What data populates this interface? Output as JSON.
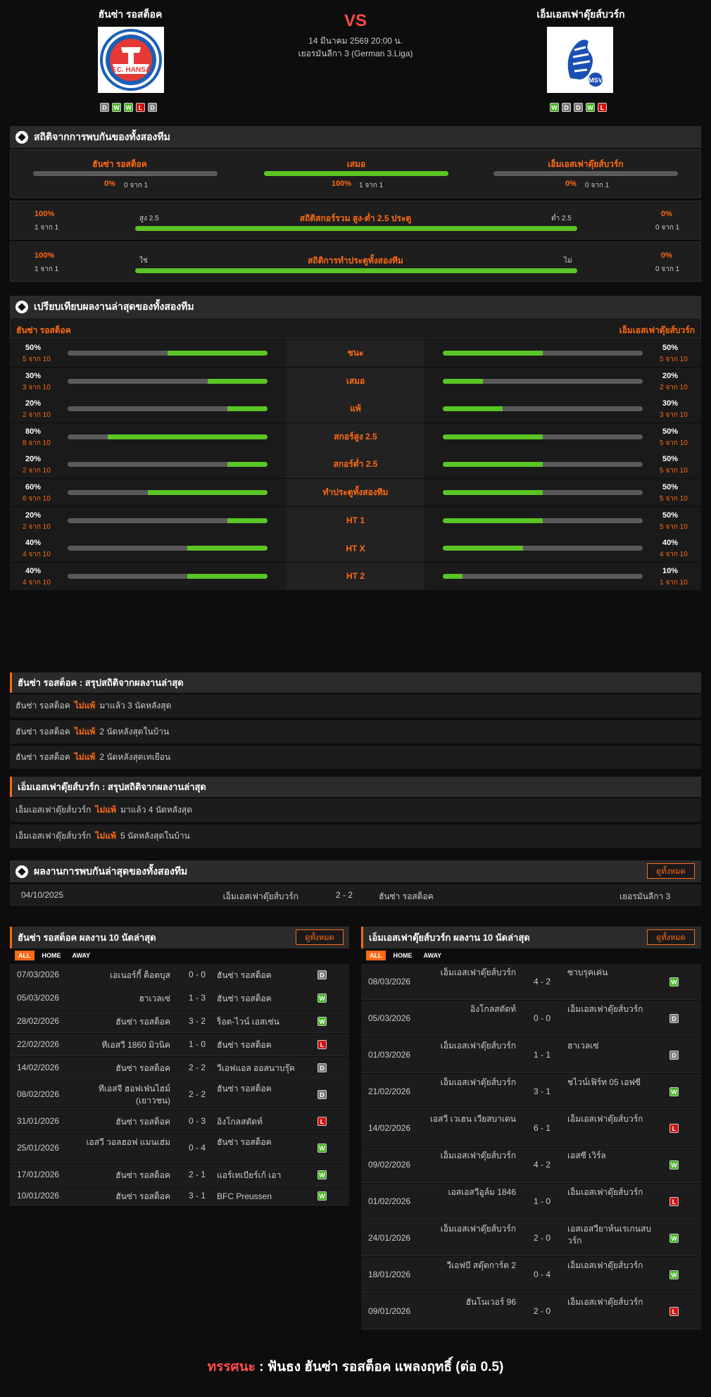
{
  "match": {
    "vs": "VS",
    "date": "14 มีนาคม 2569 20:00 น.",
    "league": "เยอรมันลีกา 3 (German 3.Liga)"
  },
  "home": {
    "name": "ฮันซ่า รอสต็อค",
    "form": [
      "D",
      "W",
      "W",
      "L",
      "D"
    ],
    "logo_text": "F.C. HANSA"
  },
  "away": {
    "name": "เอ็มเอสเฟาดุ๊ยส์บวร์ก",
    "form": [
      "W",
      "D",
      "D",
      "W",
      "L"
    ],
    "logo_text": "MSV"
  },
  "h2h": {
    "title": "สถิติจากการพบกันของทั้งสองทีม",
    "home": {
      "label": "ฮันซ่า รอสต็อค",
      "pct": "0%",
      "sub": "0 จาก 1",
      "value": 0
    },
    "draw": {
      "label": "เสมอ",
      "pct": "100%",
      "sub": "1 จาก 1",
      "value": 1
    },
    "away": {
      "label": "เอ็มเอสเฟาดุ๊ยส์บวร์ก",
      "pct": "0%",
      "sub": "0 จาก 1",
      "value": 0
    },
    "ou": {
      "left_pct": "100%",
      "left_sub": "1 จาก 1",
      "left_lbl": "สูง 2.5",
      "title": "สถิติสกอร์รวม สูง-ต่ำ 2.5 ประตู",
      "right_lbl": "ต่ำ 2.5",
      "right_pct": "0%",
      "right_sub": "0 จาก 1",
      "value": 1
    },
    "btts": {
      "left_pct": "100%",
      "left_sub": "1 จาก 1",
      "left_lbl": "ใช่",
      "title": "สถิติการทำประตูทั้งสองทีม",
      "right_lbl": "ไม่",
      "right_pct": "0%",
      "right_sub": "0 จาก 1",
      "value": 1
    }
  },
  "compare": {
    "title": "เปรียบเทียบผลงานล่าสุดของทั้งสองทีม",
    "home_label": "ฮันซ่า รอสต็อค",
    "away_label": "เอ็มเอสเฟาดุ๊ยส์บวร์ก",
    "rows": [
      {
        "label": "ชนะ",
        "hp": "50%",
        "hs": "5 จาก 10",
        "hv": 0.5,
        "ap": "50%",
        "as": "5 จาก 10",
        "av": 0.5
      },
      {
        "label": "เสมอ",
        "hp": "30%",
        "hs": "3 จาก 10",
        "hv": 0.3,
        "ap": "20%",
        "as": "2 จาก 10",
        "av": 0.2
      },
      {
        "label": "แพ้",
        "hp": "20%",
        "hs": "2 จาก 10",
        "hv": 0.2,
        "ap": "30%",
        "as": "3 จาก 10",
        "av": 0.3
      },
      {
        "label": "สกอร์สูง 2.5",
        "hp": "80%",
        "hs": "8 จาก 10",
        "hv": 0.8,
        "ap": "50%",
        "as": "5 จาก 10",
        "av": 0.5
      },
      {
        "label": "สกอร์ต่ำ 2.5",
        "hp": "20%",
        "hs": "2 จาก 10",
        "hv": 0.2,
        "ap": "50%",
        "as": "5 จาก 10",
        "av": 0.5
      },
      {
        "label": "ทำประตูทั้งสองทีม",
        "hp": "60%",
        "hs": "6 จาก 10",
        "hv": 0.6,
        "ap": "50%",
        "as": "5 จาก 10",
        "av": 0.5
      },
      {
        "label": "HT 1",
        "hp": "20%",
        "hs": "2 จาก 10",
        "hv": 0.2,
        "ap": "50%",
        "as": "5 จาก 10",
        "av": 0.5
      },
      {
        "label": "HT X",
        "hp": "40%",
        "hs": "4 จาก 10",
        "hv": 0.4,
        "ap": "40%",
        "as": "4 จาก 10",
        "av": 0.4
      },
      {
        "label": "HT 2",
        "hp": "40%",
        "hs": "4 จาก 10",
        "hv": 0.4,
        "ap": "10%",
        "as": "1 จาก 10",
        "av": 0.1
      }
    ]
  },
  "summary_home": {
    "title": "ฮันซ่า รอสต็อค : สรุปสถิติจากผลงานล่าสุด",
    "rows": [
      {
        "team": "ฮันซ่า รอสต็อค",
        "key": "ไม่แพ้",
        "text": "มาแล้ว 3 นัดหลังสุด"
      },
      {
        "team": "ฮันซ่า รอสต็อค",
        "key": "ไม่แพ้",
        "text": "2 นัดหลังสุดในบ้าน"
      },
      {
        "team": "ฮันซ่า รอสต็อค",
        "key": "ไม่แพ้",
        "text": "2 นัดหลังสุดเทเยือน"
      }
    ]
  },
  "summary_away": {
    "title": "เอ็มเอสเฟาดุ๊ยส์บวร์ก : สรุปสถิติจากผลงานล่าสุด",
    "rows": [
      {
        "team": "เอ็มเอสเฟาดุ๊ยส์บวร์ก",
        "key": "ไม่แพ้",
        "text": "มาแล้ว 4 นัดหลังสุด"
      },
      {
        "team": "เอ็มเอสเฟาดุ๊ยส์บวร์ก",
        "key": "ไม่แพ้",
        "text": "5 นัดหลังสุดในบ้าน"
      }
    ]
  },
  "recent_h2h": {
    "title": "ผลงานการพบกันล่าสุดของทั้งสองทีม",
    "btn": "ดูทั้งหมด",
    "rows": [
      {
        "date": "04/10/2025",
        "home": "เอ็มเอสเฟาดุ๊ยส์บวร์ก",
        "score": "2 - 2",
        "away": "ฮันซ่า รอสต็อค",
        "league": "เยอรมันลีกา 3"
      }
    ]
  },
  "last10_home": {
    "title": "ฮันซ่า รอสต็อค ผลงาน 10 นัดล่าสุด",
    "btn": "ดูทั้งหมด",
    "tabs": [
      "ALL",
      "HOME",
      "AWAY"
    ],
    "rows": [
      {
        "date": "07/03/2026",
        "home": "เอเนอร์กี้ ค็อตบุส",
        "score": "0 - 0",
        "away": "ฮันซ่า รอสต็อค",
        "res": "D"
      },
      {
        "date": "05/03/2026",
        "home": "ฮาเวลเซ่",
        "score": "1 - 3",
        "away": "ฮันซ่า รอสต็อค",
        "res": "W"
      },
      {
        "date": "28/02/2026",
        "home": "ฮันซ่า รอสต็อค",
        "score": "3 - 2",
        "away": "ร็อต-ไวน์ เอสเซ่น",
        "res": "W"
      },
      {
        "date": "22/02/2026",
        "home": "ทีเอสวี 1860 มิวนิค",
        "score": "1 - 0",
        "away": "ฮันซ่า รอสต็อค",
        "res": "L"
      },
      {
        "date": "14/02/2026",
        "home": "ฮันซ่า รอสต็อค",
        "score": "2 - 2",
        "away": "วีเอฟแอล ออสนาบรุ๊ค",
        "res": "D"
      },
      {
        "date": "08/02/2026",
        "home": "ทีเอสจี ฮอฟเฟ่นไฮม์ (เยาวชน)",
        "score": "2 - 2",
        "away": "ฮันซ่า รอสต็อค",
        "res": "D"
      },
      {
        "date": "31/01/2026",
        "home": "ฮันซ่า รอสต็อค",
        "score": "0 - 3",
        "away": "อิงโกลสตัดท์",
        "res": "L"
      },
      {
        "date": "25/01/2026",
        "home": "เอสวี วอลฮอฟ แมนเฮ่ม",
        "score": "0 - 4",
        "away": "ฮันซ่า รอสต็อค",
        "res": "W"
      },
      {
        "date": "17/01/2026",
        "home": "ฮันซ่า รอสต็อค",
        "score": "2 - 1",
        "away": "แอร์เทเบียร์เก้ เอา",
        "res": "W"
      },
      {
        "date": "10/01/2026",
        "home": "ฮันซ่า รอสต็อค",
        "score": "3 - 1",
        "away": "BFC Preussen",
        "res": "W"
      }
    ]
  },
  "last10_away": {
    "title": "เอ็มเอสเฟาดุ๊ยส์บวร์ก ผลงาน 10 นัดล่าสุด",
    "btn": "ดูทั้งหมด",
    "tabs": [
      "ALL",
      "HOME",
      "AWAY"
    ],
    "rows": [
      {
        "date": "08/03/2026",
        "home": "เอ็มเอสเฟาดุ๊ยส์บวร์ก",
        "score": "4 - 2",
        "away": "ซาบรุคเค่น",
        "res": "W"
      },
      {
        "date": "05/03/2026",
        "home": "อิงโกลสตัดท์",
        "score": "0 - 0",
        "away": "เอ็มเอสเฟาดุ๊ยส์บวร์ก",
        "res": "D"
      },
      {
        "date": "01/03/2026",
        "home": "เอ็มเอสเฟาดุ๊ยส์บวร์ก",
        "score": "1 - 1",
        "away": "ฮาเวลเซ่",
        "res": "D"
      },
      {
        "date": "21/02/2026",
        "home": "เอ็มเอสเฟาดุ๊ยส์บวร์ก",
        "score": "3 - 1",
        "away": "ชไวน์เฟิร์ท 05 เอฟซี",
        "res": "W"
      },
      {
        "date": "14/02/2026",
        "home": "เอสวี เวเฮน เวียสบาเดน",
        "score": "6 - 1",
        "away": "เอ็มเอสเฟาดุ๊ยส์บวร์ก",
        "res": "L"
      },
      {
        "date": "09/02/2026",
        "home": "เอ็มเอสเฟาดุ๊ยส์บวร์ก",
        "score": "4 - 2",
        "away": "เอสซี เวิร์ล",
        "res": "W"
      },
      {
        "date": "01/02/2026",
        "home": "เอสเอสวีอูล์ม 1846",
        "score": "1 - 0",
        "away": "เอ็มเอสเฟาดุ๊ยส์บวร์ก",
        "res": "L"
      },
      {
        "date": "24/01/2026",
        "home": "เอ็มเอสเฟาดุ๊ยส์บวร์ก",
        "score": "2 - 0",
        "away": "เอสเอสวียาห์นเรเกนสบวร์ก",
        "res": "W"
      },
      {
        "date": "18/01/2026",
        "home": "วีเอฟบี สตุ๊ตการ์ต 2",
        "score": "0 - 4",
        "away": "เอ็มเอสเฟาดุ๊ยส์บวร์ก",
        "res": "W"
      },
      {
        "date": "09/01/2026",
        "home": "ฮันโนเวอร์ 96",
        "score": "2 - 0",
        "away": "เอ็มเอสเฟาดุ๊ยส์บวร์ก",
        "res": "L"
      }
    ]
  },
  "verdict": {
    "label": "ทรรศนะ",
    "sep": ":",
    "text": "ฟันธง ฮันซ่า รอสต็อค แพลงฤทธิ์ (ต่อ 0.5)"
  }
}
